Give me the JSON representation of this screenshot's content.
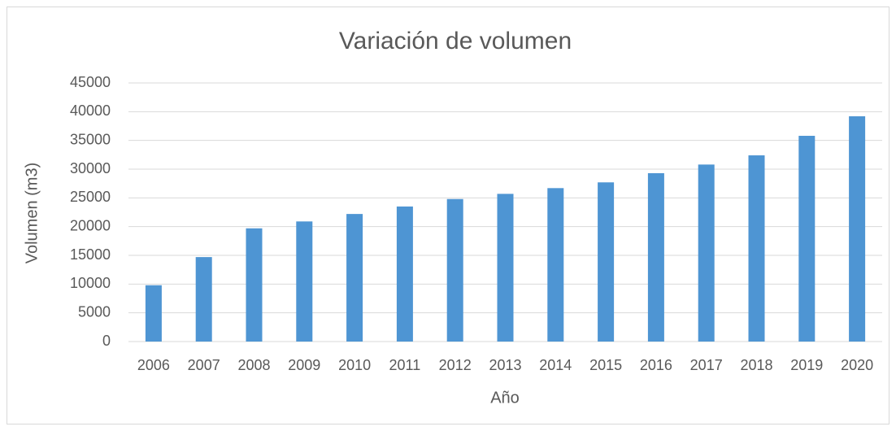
{
  "chart_data": {
    "type": "bar",
    "title": "Variación de volumen",
    "x_label": "Año",
    "y_label": "Volumen (m3)",
    "categories": [
      "2006",
      "2007",
      "2008",
      "2009",
      "2010",
      "2011",
      "2012",
      "2013",
      "2014",
      "2015",
      "2016",
      "2017",
      "2018",
      "2019",
      "2020"
    ],
    "values": [
      9800,
      14700,
      19700,
      20900,
      22200,
      23500,
      24800,
      25700,
      26700,
      27700,
      29300,
      30800,
      32400,
      35800,
      39200
    ],
    "color": "#4e95d3",
    "ylim": [
      0,
      45000
    ],
    "yticks": [
      0,
      5000,
      10000,
      15000,
      20000,
      25000,
      30000,
      35000,
      40000,
      45000
    ],
    "grid": true
  }
}
